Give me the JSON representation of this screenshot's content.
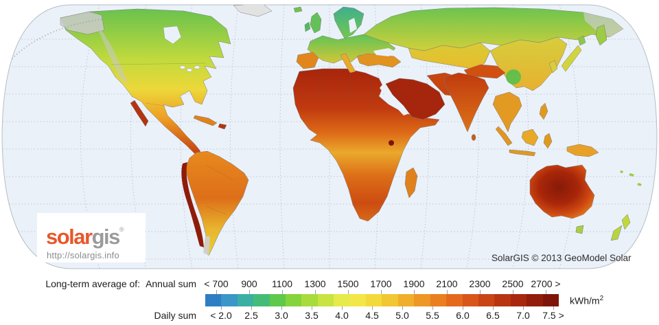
{
  "map": {
    "ocean_color": "#ebf1f9",
    "copyright": "SolarGIS © 2013 GeoModel Solar",
    "logo": {
      "brand_solar": "solar",
      "brand_gis": "gis",
      "registered_mark": "®",
      "url": "http://solargis.info"
    }
  },
  "legend": {
    "prefix_label": "Long-term average of:",
    "annual_row_label": "Annual sum",
    "daily_row_label": "Daily sum",
    "unit_base": "kWh/m",
    "unit_exponent": "2",
    "annual_tick_labels": [
      "< 700",
      "900",
      "1100",
      "1300",
      "1500",
      "1700",
      "1900",
      "2100",
      "2300",
      "2500",
      "2700 >"
    ],
    "daily_tick_labels": [
      "< 2.0",
      "2.5",
      "3.0",
      "3.5",
      "4.0",
      "4.5",
      "5.0",
      "5.5",
      "6.0",
      "6.5",
      "7.0",
      "7.5 >"
    ],
    "color_scale": [
      "#2e7ec3",
      "#3a97c8",
      "#3cafa4",
      "#44bc78",
      "#5fc94c",
      "#85d43c",
      "#a8dc3c",
      "#c8e342",
      "#e6ea4a",
      "#f3e748",
      "#f3da3c",
      "#f1c733",
      "#f0af2b",
      "#ee9626",
      "#ea7f20",
      "#e4691d",
      "#d85619",
      "#c94515",
      "#b93511",
      "#a7280e",
      "#931d0b",
      "#7f150a"
    ]
  }
}
